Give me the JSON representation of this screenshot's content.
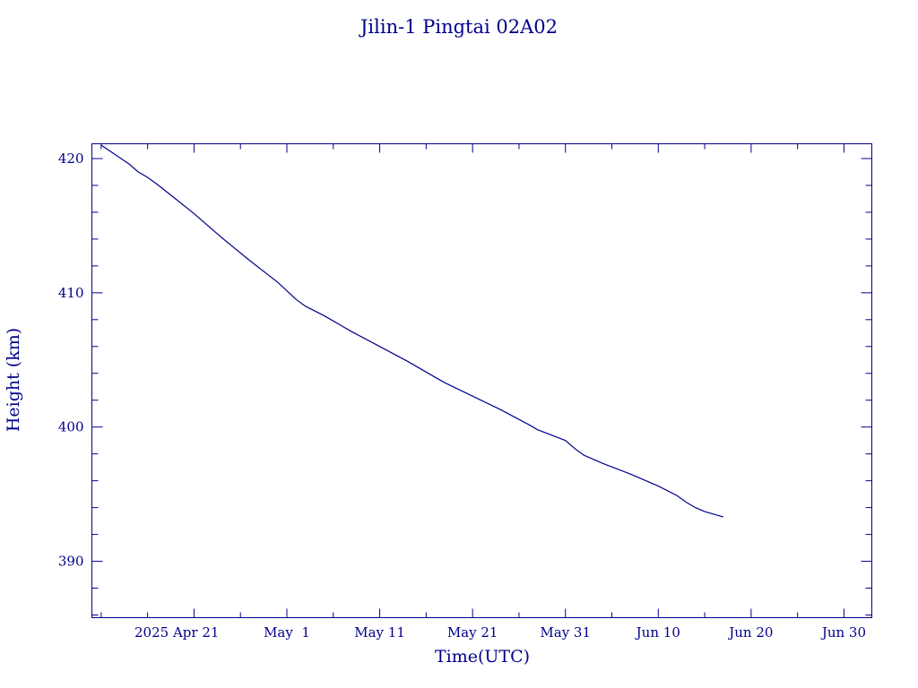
{
  "chart_data": {
    "type": "line",
    "title": "Jilin-1 Pingtai 02A02",
    "xlabel": "Time(UTC)",
    "ylabel": "Height (km)",
    "ylim": [
      385.8,
      421.1
    ],
    "x_range": [
      "2025-04-10",
      "2025-07-03"
    ],
    "x_ticks": [
      {
        "date": "2025-04-21",
        "label": "2025 Apr 21"
      },
      {
        "date": "2025-05-01",
        "label": "May  1"
      },
      {
        "date": "2025-05-11",
        "label": "May 11"
      },
      {
        "date": "2025-05-21",
        "label": "May 21"
      },
      {
        "date": "2025-05-31",
        "label": "May 31"
      },
      {
        "date": "2025-06-10",
        "label": "Jun 10"
      },
      {
        "date": "2025-06-20",
        "label": "Jun 20"
      },
      {
        "date": "2025-06-30",
        "label": "Jun 30"
      }
    ],
    "y_ticks": [
      390,
      400,
      410,
      420
    ],
    "grid": false,
    "color": "#00008b",
    "series": [
      {
        "x": [
          "2025-04-11",
          "2025-04-14",
          "2025-04-15",
          "2025-04-16",
          "2025-04-17",
          "2025-04-19",
          "2025-04-21",
          "2025-04-24",
          "2025-04-27",
          "2025-04-30",
          "2025-05-02",
          "2025-05-03",
          "2025-05-05",
          "2025-05-08",
          "2025-05-11",
          "2025-05-14",
          "2025-05-17",
          "2025-05-18",
          "2025-05-21",
          "2025-05-24",
          "2025-05-27",
          "2025-05-28",
          "2025-05-31",
          "2025-06-01",
          "2025-06-02",
          "2025-06-03",
          "2025-06-04",
          "2025-06-07",
          "2025-06-10",
          "2025-06-12",
          "2025-06-13",
          "2025-06-14",
          "2025-06-15",
          "2025-06-17"
        ],
        "y": [
          421.0,
          419.6,
          419.0,
          418.6,
          418.1,
          417.0,
          415.9,
          414.1,
          412.4,
          410.8,
          409.5,
          409.0,
          408.3,
          407.1,
          406.0,
          404.9,
          403.7,
          403.3,
          402.3,
          401.3,
          400.2,
          399.8,
          399.0,
          398.4,
          397.9,
          397.6,
          397.3,
          396.5,
          395.6,
          394.9,
          394.4,
          394.0,
          393.7,
          393.3
        ]
      }
    ]
  }
}
